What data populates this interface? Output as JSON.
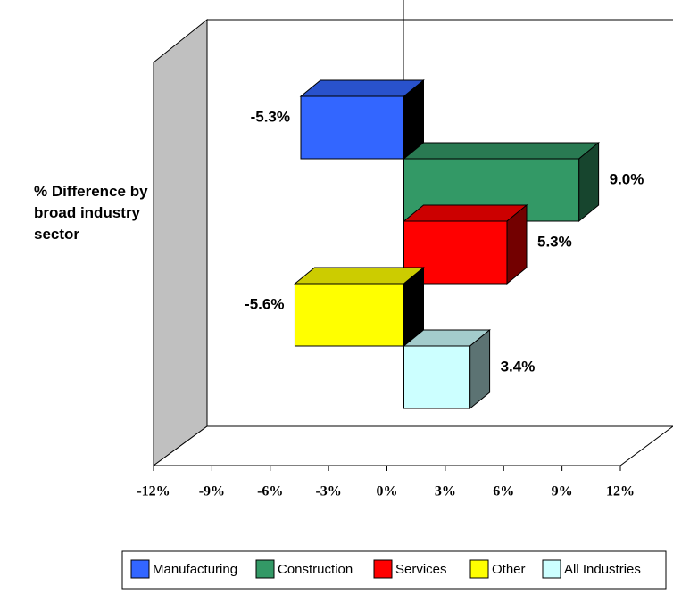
{
  "chart_data": {
    "type": "bar3d-horizontal",
    "y_axis_label": "% Difference by broad industry sector",
    "categories": [
      "Manufacturing",
      "Construction",
      "Services",
      "Other",
      "All Industries"
    ],
    "values": [
      -5.3,
      9.0,
      5.3,
      -5.6,
      3.4
    ],
    "value_labels": [
      "-5.3%",
      "9.0%",
      "5.3%",
      "-5.6%",
      "3.4%"
    ],
    "colors": [
      "#3366ff",
      "#339966",
      "#ff0000",
      "#ffff00",
      "#ccffff"
    ],
    "xlim": [
      -12,
      12
    ],
    "xticks": [
      {
        "value": -12,
        "label": "-12%"
      },
      {
        "value": -9,
        "label": "-9%"
      },
      {
        "value": -6,
        "label": "-6%"
      },
      {
        "value": -3,
        "label": "-3%"
      },
      {
        "value": 0,
        "label": "0%"
      },
      {
        "value": 3,
        "label": "3%"
      },
      {
        "value": 6,
        "label": "6%"
      },
      {
        "value": 9,
        "label": "9%"
      },
      {
        "value": 12,
        "label": "12%"
      }
    ],
    "legend": "bottom"
  }
}
